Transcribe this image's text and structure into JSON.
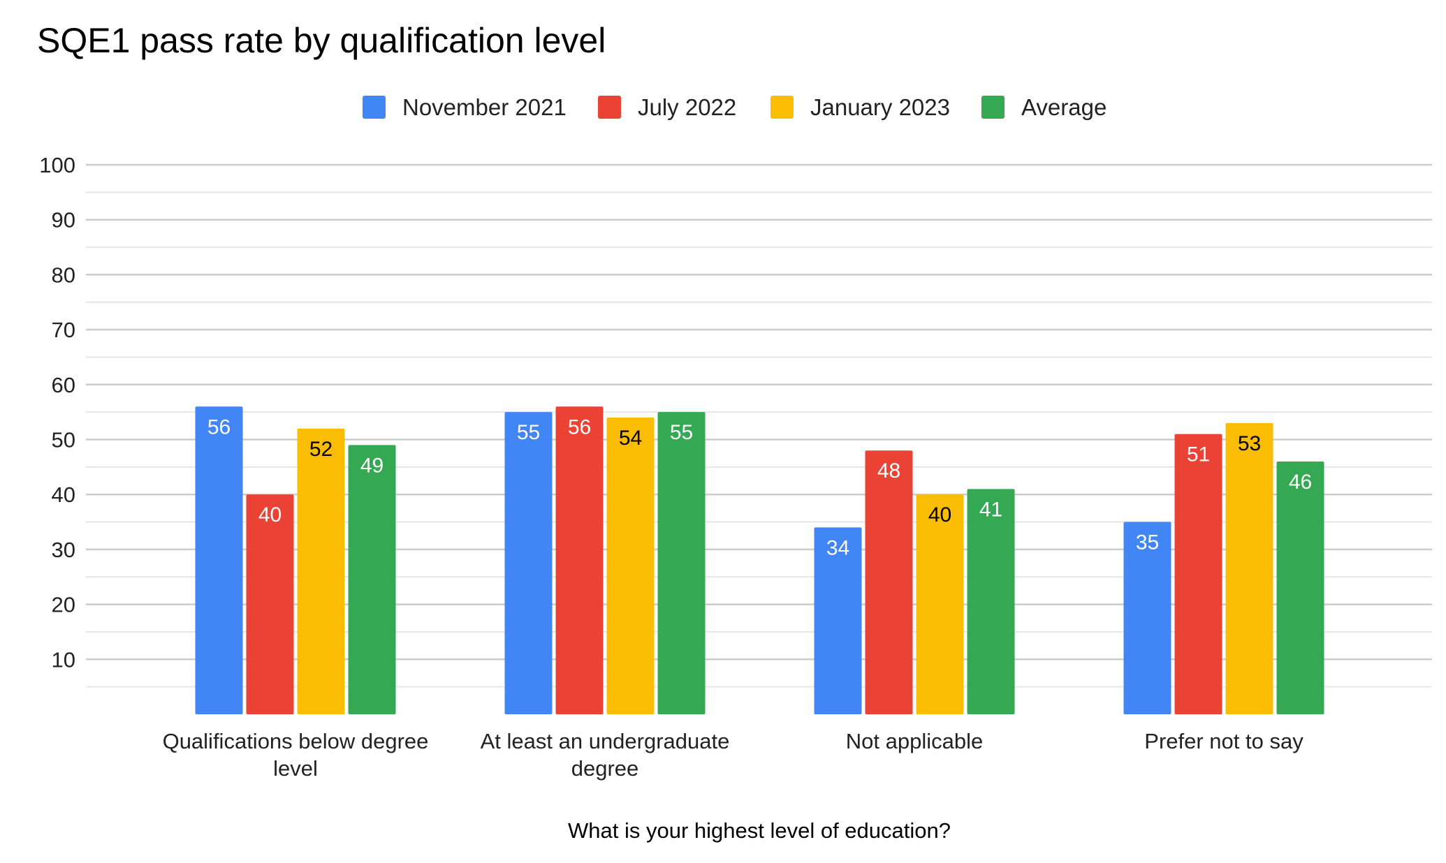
{
  "chart_data": {
    "type": "bar",
    "title": "SQE1 pass rate by qualification level",
    "xlabel": "What is your highest level of education?",
    "ylabel": "",
    "ylim": [
      0,
      100
    ],
    "yticks": [
      10,
      20,
      30,
      40,
      50,
      60,
      70,
      80,
      90,
      100
    ],
    "grid": true,
    "legend_position": "top",
    "categories": [
      [
        "Qualifications below degree",
        "level"
      ],
      [
        "At least an undergraduate",
        "degree"
      ],
      [
        "Not applicable"
      ],
      [
        "Prefer not to say"
      ]
    ],
    "series": [
      {
        "name": "November 2021",
        "color": "#4285F4",
        "label_color": "#ffffff",
        "values": [
          56,
          55,
          34,
          35
        ]
      },
      {
        "name": "July 2022",
        "color": "#EA4335",
        "label_color": "#ffffff",
        "values": [
          40,
          56,
          48,
          51
        ]
      },
      {
        "name": "January 2023",
        "color": "#FBBC04",
        "label_color": "#000000",
        "values": [
          52,
          54,
          40,
          53
        ]
      },
      {
        "name": "Average",
        "color": "#34A853",
        "label_color": "#ffffff",
        "values": [
          49,
          55,
          41,
          46
        ]
      }
    ]
  }
}
